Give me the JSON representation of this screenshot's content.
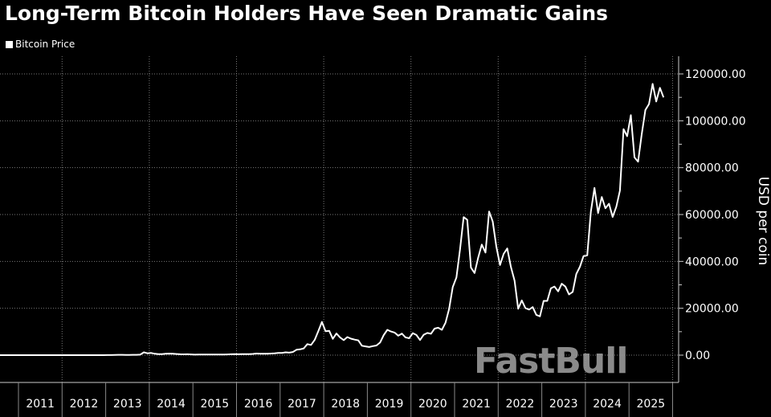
{
  "chart_data": {
    "type": "line",
    "title": "Long-Term Bitcoin Holders Have Seen Dramatic Gains",
    "legend": [
      "Bitcoin Price"
    ],
    "legend_position": "top-left",
    "xlabel": "",
    "ylabel": "USD per coin",
    "ylim": [
      0,
      120000
    ],
    "yticks": [
      "0.00",
      "20000.00",
      "40000.00",
      "60000.00",
      "80000.00",
      "100000.00",
      "120000.00"
    ],
    "ytick_values": [
      0,
      20000,
      40000,
      60000,
      80000,
      100000,
      120000
    ],
    "xticks": [
      "2011",
      "2012",
      "2013",
      "2014",
      "2015",
      "2016",
      "2017",
      "2018",
      "2019",
      "2020",
      "2021",
      "2022",
      "2023",
      "2024",
      "2025"
    ],
    "grid": true,
    "line_color": "#ffffff",
    "start_month": "2010-07",
    "series": [
      {
        "name": "Bitcoin Price",
        "values": [
          0.07,
          0.06,
          0.06,
          0.19,
          0.21,
          0.3,
          0.5,
          0.9,
          0.8,
          3.5,
          8.7,
          16.7,
          13.4,
          8.2,
          5.1,
          3.2,
          3.0,
          4.7,
          5.5,
          4.9,
          4.9,
          5.0,
          5.1,
          6.7,
          9.4,
          10.2,
          12.4,
          11.2,
          12.6,
          13.5,
          20,
          33,
          93,
          139,
          129,
          97,
          106,
          141,
          141,
          211,
          1205,
          805,
          938,
          573,
          458,
          448,
          627,
          640,
          586,
          481,
          387,
          338,
          378,
          320,
          217,
          254,
          244,
          236,
          230,
          263,
          285,
          230,
          236,
          314,
          378,
          430,
          369,
          437,
          416,
          448,
          531,
          674,
          624,
          575,
          609,
          700,
          745,
          964,
          970,
          1190,
          1080,
          1348,
          2300,
          2480,
          2875,
          4700,
          4340,
          6470,
          10230,
          14156,
          10221,
          10397,
          6973,
          9240,
          7494,
          6404,
          7730,
          7035,
          6625,
          6318,
          4017,
          3742,
          3457,
          3854,
          4105,
          5350,
          8574,
          10817,
          10085,
          9631,
          8293,
          9199,
          7569,
          7194,
          9350,
          8600,
          6438,
          8658,
          9461,
          9137,
          11323,
          11681,
          10784,
          13805,
          19700,
          28990,
          33114,
          45137,
          58918,
          57750,
          37332,
          35040,
          41626,
          47166,
          43790,
          61318,
          57005,
          46306,
          38483,
          43194,
          45538,
          37714,
          31792,
          19784,
          23336,
          20050,
          19432,
          20495,
          17168,
          16547,
          23139,
          23147,
          28478,
          29268,
          27220,
          30477,
          29230,
          25931,
          26968,
          34667,
          37712,
          42265,
          42580,
          61198,
          71333,
          60636,
          67491,
          62678,
          64619,
          58969,
          63329,
          70215,
          96449,
          93429,
          102405,
          84373,
          82548,
          94207,
          104638,
          107135,
          115758,
          108236,
          114057,
          110000
        ]
      }
    ]
  },
  "watermark": "FastBull"
}
